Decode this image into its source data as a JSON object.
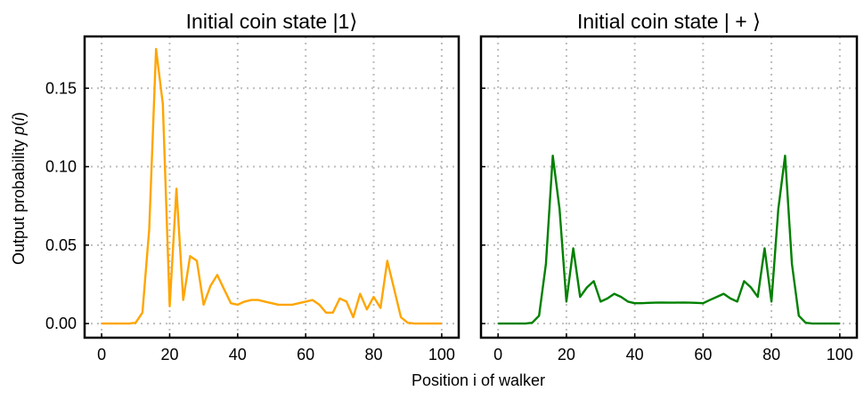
{
  "figure": {
    "xlabel": "Position i of walker",
    "ylabel": "Output probability p(i)"
  },
  "chart_data": [
    {
      "type": "line",
      "title": "Initial coin state |1⟩",
      "xlabel": "Position i of walker",
      "ylabel": "Output probability p(i)",
      "xlim": [
        -5,
        105
      ],
      "ylim": [
        -0.009,
        0.183
      ],
      "xticks": [
        0,
        20,
        40,
        60,
        80,
        100
      ],
      "xtick_labels": [
        "0",
        "20",
        "40",
        "60",
        "80",
        "100"
      ],
      "yticks": [
        0.0,
        0.05,
        0.1,
        0.15
      ],
      "ytick_labels": [
        "0.00",
        "0.05",
        "0.10",
        "0.15"
      ],
      "grid": true,
      "color": "#FFA500",
      "x": [
        0,
        2,
        4,
        6,
        8,
        10,
        12,
        14,
        16,
        18,
        20,
        22,
        24,
        26,
        28,
        30,
        32,
        34,
        36,
        38,
        40,
        42,
        44,
        46,
        48,
        50,
        52,
        54,
        56,
        58,
        60,
        62,
        64,
        66,
        68,
        70,
        72,
        74,
        76,
        78,
        80,
        82,
        84,
        86,
        88,
        90,
        92,
        94,
        96,
        98,
        100
      ],
      "y": [
        0,
        0,
        0,
        0,
        0,
        0.0005,
        0.007,
        0.06,
        0.175,
        0.14,
        0.011,
        0.086,
        0.015,
        0.043,
        0.04,
        0.012,
        0.024,
        0.031,
        0.022,
        0.013,
        0.012,
        0.014,
        0.015,
        0.015,
        0.014,
        0.013,
        0.012,
        0.012,
        0.012,
        0.013,
        0.014,
        0.015,
        0.012,
        0.007,
        0.007,
        0.016,
        0.014,
        0.004,
        0.019,
        0.009,
        0.017,
        0.01,
        0.04,
        0.022,
        0.004,
        0.0005,
        0,
        0,
        0,
        0,
        0
      ]
    },
    {
      "type": "line",
      "title": "Initial coin state | + ⟩",
      "xlabel": "Position i of walker",
      "xlim": [
        -5,
        105
      ],
      "ylim": [
        -0.009,
        0.183
      ],
      "xticks": [
        0,
        20,
        40,
        60,
        80,
        100
      ],
      "xtick_labels": [
        "0",
        "20",
        "40",
        "60",
        "80",
        "100"
      ],
      "yticks": [
        0.0,
        0.05,
        0.1,
        0.15
      ],
      "grid": true,
      "color": "#008000",
      "x": [
        0,
        2,
        4,
        6,
        8,
        10,
        12,
        14,
        16,
        18,
        20,
        22,
        24,
        26,
        28,
        30,
        32,
        34,
        36,
        38,
        40,
        42,
        44,
        46,
        48,
        50,
        52,
        54,
        56,
        58,
        60,
        62,
        64,
        66,
        68,
        70,
        72,
        74,
        76,
        78,
        80,
        82,
        84,
        86,
        88,
        90,
        92,
        94,
        96,
        98,
        100
      ],
      "y": [
        0,
        0,
        0,
        0,
        0,
        0.0005,
        0.005,
        0.038,
        0.107,
        0.073,
        0.014,
        0.048,
        0.017,
        0.023,
        0.027,
        0.014,
        0.016,
        0.019,
        0.017,
        0.014,
        0.013,
        0.013,
        0.0132,
        0.0133,
        0.0134,
        0.0133,
        0.0133,
        0.0134,
        0.0133,
        0.0132,
        0.013,
        0.015,
        0.017,
        0.019,
        0.016,
        0.014,
        0.027,
        0.023,
        0.017,
        0.048,
        0.014,
        0.073,
        0.107,
        0.038,
        0.005,
        0.0005,
        0,
        0,
        0,
        0,
        0
      ]
    }
  ]
}
